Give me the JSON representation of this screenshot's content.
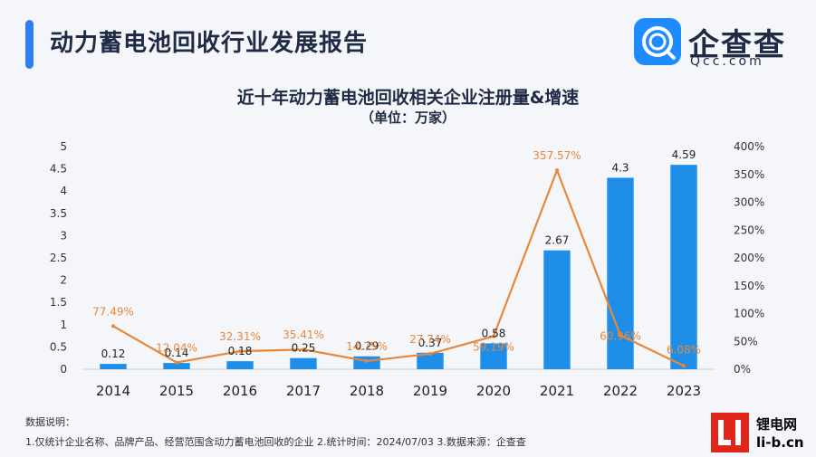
{
  "header": {
    "title": "动力蓄电池回收行业发展报告"
  },
  "logo": {
    "name": "企查查",
    "domain": "Qcc.com"
  },
  "chart_data": {
    "type": "bar",
    "title": "近十年动力蓄电池回收相关企业注册量&增速",
    "subtitle": "（单位：万家）",
    "categories": [
      "2014",
      "2015",
      "2016",
      "2017",
      "2018",
      "2019",
      "2020",
      "2021",
      "2022",
      "2023"
    ],
    "series": [
      {
        "type": "bar",
        "axis": "left",
        "color": "#1e8ee8",
        "values": [
          0.12,
          0.14,
          0.18,
          0.25,
          0.29,
          0.37,
          0.58,
          2.67,
          4.3,
          4.59
        ],
        "labels": [
          "0.12",
          "0.14",
          "0.18",
          "0.25",
          "0.29",
          "0.37",
          "0.58",
          "2.67",
          "4.3",
          "4.59"
        ]
      },
      {
        "type": "line",
        "axis": "right",
        "color": "#e8873a",
        "values": [
          77.49,
          12.04,
          32.31,
          35.41,
          14.75,
          27.74,
          59.19,
          357.57,
          60.96,
          6.08
        ],
        "labels": [
          "77.49%",
          "12.04%",
          "32.31%",
          "35.41%",
          "14.75%",
          "27.74%",
          "59.19%",
          "357.57%",
          "60.96%",
          "6.08%"
        ]
      }
    ],
    "y_left": {
      "min": 0,
      "max": 5,
      "ticks": [
        "0",
        "0.5",
        "1",
        "1.5",
        "2",
        "2.5",
        "3",
        "3.5",
        "4",
        "4.5",
        "5"
      ]
    },
    "y_right": {
      "min": 0,
      "max": 400,
      "ticks": [
        "0%",
        "50%",
        "100%",
        "150%",
        "200%",
        "250%",
        "300%",
        "350%",
        "400%"
      ]
    }
  },
  "notes": {
    "heading": "数据说明：",
    "line": "1.仅统计企业名称、品牌产品、经营范围含动力蓄电池回收的企业  2.统计时间：2024/07/03  3.数据来源：企查查"
  },
  "watermark": {
    "line1": "锂电网",
    "line2": "li-b.cn"
  }
}
